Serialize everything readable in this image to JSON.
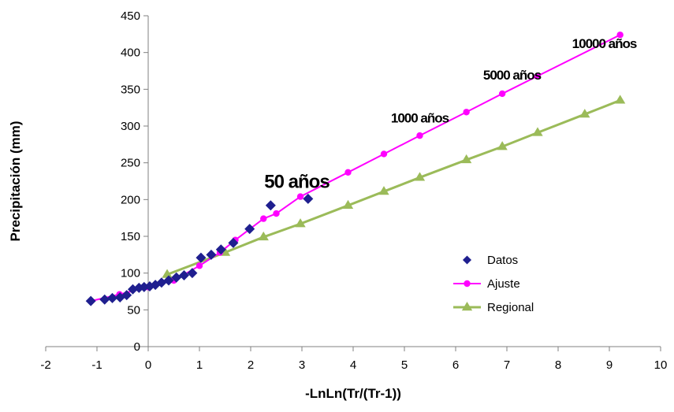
{
  "chart_data": {
    "type": "scatter",
    "title": "",
    "xlabel": "-LnLn(Tr/(Tr-1))",
    "ylabel": "Precipitación (mm)",
    "xlim": [
      -2,
      10
    ],
    "ylim": [
      0,
      450
    ],
    "xticks": [
      -2,
      -1,
      0,
      1,
      2,
      3,
      4,
      5,
      6,
      7,
      8,
      9,
      10
    ],
    "yticks": [
      0,
      50,
      100,
      150,
      200,
      250,
      300,
      350,
      400,
      450
    ],
    "grid": false,
    "legend_position": "right",
    "series": [
      {
        "name": "Datos",
        "kind": "markers",
        "marker": "diamond",
        "color": "#1f1f8f",
        "points": [
          [
            -1.12,
            62
          ],
          [
            -0.85,
            64
          ],
          [
            -0.7,
            66
          ],
          [
            -0.55,
            67
          ],
          [
            -0.42,
            70
          ],
          [
            -0.3,
            78
          ],
          [
            -0.18,
            80
          ],
          [
            -0.08,
            81
          ],
          [
            0.03,
            82
          ],
          [
            0.14,
            84
          ],
          [
            0.26,
            87
          ],
          [
            0.4,
            90
          ],
          [
            0.55,
            94
          ],
          [
            0.7,
            97
          ],
          [
            0.86,
            100
          ],
          [
            1.03,
            121
          ],
          [
            1.23,
            125
          ],
          [
            1.42,
            132
          ],
          [
            1.66,
            141
          ],
          [
            1.98,
            160
          ],
          [
            2.39,
            192
          ],
          [
            3.12,
            201
          ]
        ]
      },
      {
        "name": "Ajuste",
        "kind": "line-markers",
        "marker": "circle",
        "color": "#ff00ff",
        "points": [
          [
            -1.12,
            62
          ],
          [
            -0.56,
            71
          ],
          [
            0.0,
            81
          ],
          [
            0.5,
            90
          ],
          [
            1.0,
            110
          ],
          [
            1.4,
            128
          ],
          [
            1.7,
            145
          ],
          [
            2.25,
            174
          ],
          [
            2.5,
            181
          ],
          [
            2.97,
            204
          ],
          [
            3.9,
            237
          ],
          [
            4.6,
            262
          ],
          [
            5.3,
            287
          ],
          [
            6.21,
            319
          ],
          [
            6.91,
            344
          ],
          [
            7.6,
            368
          ],
          [
            9.21,
            424
          ]
        ]
      },
      {
        "name": "Regional",
        "kind": "line-markers",
        "marker": "triangle",
        "color": "#9bbb59",
        "points": [
          [
            0.37,
            98
          ],
          [
            1.5,
            128
          ],
          [
            2.25,
            149
          ],
          [
            2.97,
            167
          ],
          [
            3.9,
            192
          ],
          [
            4.6,
            211
          ],
          [
            5.3,
            230
          ],
          [
            6.21,
            254
          ],
          [
            6.91,
            272
          ],
          [
            7.6,
            291
          ],
          [
            8.52,
            316
          ],
          [
            9.21,
            335
          ]
        ]
      }
    ],
    "annotations": [
      {
        "text": "50 años",
        "x": 2.9,
        "y": 216,
        "size": "large"
      },
      {
        "text": "1000 años",
        "x": 5.3,
        "y": 305,
        "size": "small"
      },
      {
        "text": "5000 años",
        "x": 7.1,
        "y": 363,
        "size": "small"
      },
      {
        "text": "10000 años",
        "x": 8.9,
        "y": 406,
        "size": "small"
      }
    ]
  }
}
